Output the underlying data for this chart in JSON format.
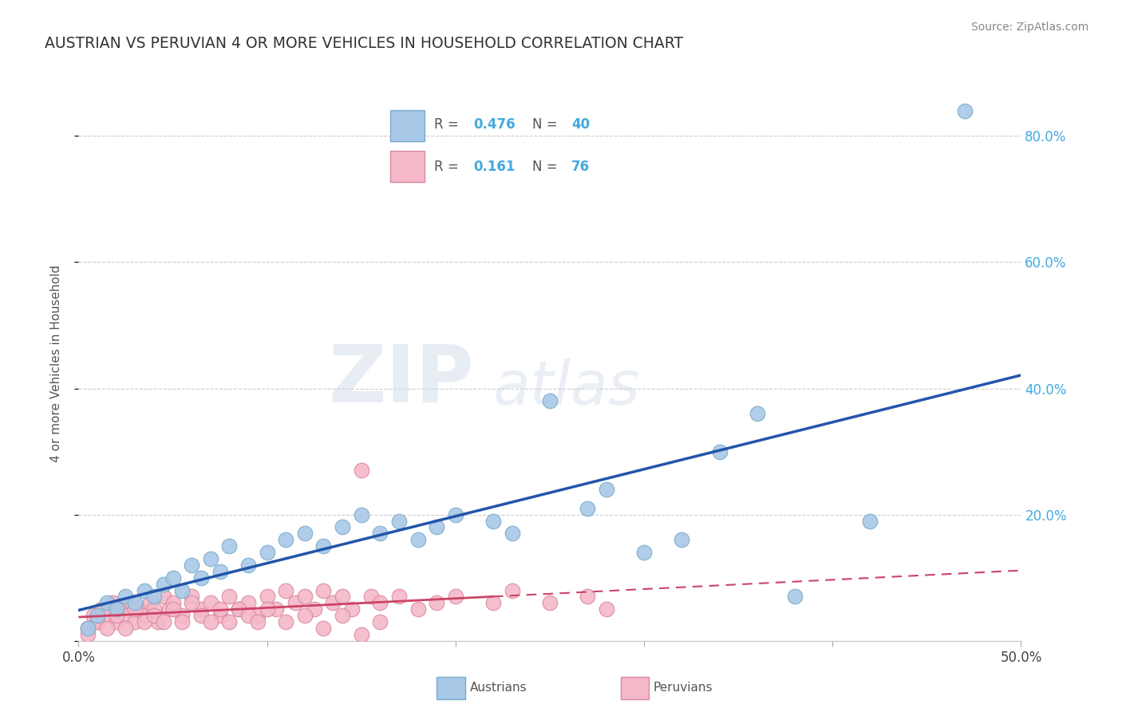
{
  "title": "AUSTRIAN VS PERUVIAN 4 OR MORE VEHICLES IN HOUSEHOLD CORRELATION CHART",
  "source": "Source: ZipAtlas.com",
  "ylabel": "4 or more Vehicles in Household",
  "xlim": [
    0.0,
    0.5
  ],
  "ylim": [
    0.0,
    0.88
  ],
  "xticks": [
    0.0,
    0.1,
    0.2,
    0.3,
    0.4,
    0.5
  ],
  "xticklabels": [
    "0.0%",
    "",
    "",
    "",
    "",
    "50.0%"
  ],
  "ytick_vals": [
    0.0,
    0.2,
    0.4,
    0.6,
    0.8
  ],
  "yticklabels": [
    "",
    "20.0%",
    "40.0%",
    "60.0%",
    "80.0%"
  ],
  "grid_color": "#cccccc",
  "background_color": "#ffffff",
  "austrian_color": "#a8c8e8",
  "austrian_edge_color": "#7aaac8",
  "peruvian_color": "#f4b8c8",
  "peruvian_edge_color": "#d888a0",
  "trend_austrian_color": "#2255aa",
  "trend_peruvian_color": "#cc4466",
  "legend_r_austrians": "0.476",
  "legend_n_austrians": "40",
  "legend_r_peruvians": "0.161",
  "legend_n_peruvians": "76",
  "austrian_points": [
    [
      0.005,
      0.02
    ],
    [
      0.01,
      0.04
    ],
    [
      0.015,
      0.06
    ],
    [
      0.02,
      0.05
    ],
    [
      0.025,
      0.07
    ],
    [
      0.03,
      0.06
    ],
    [
      0.035,
      0.08
    ],
    [
      0.04,
      0.07
    ],
    [
      0.045,
      0.09
    ],
    [
      0.05,
      0.1
    ],
    [
      0.055,
      0.08
    ],
    [
      0.06,
      0.12
    ],
    [
      0.065,
      0.1
    ],
    [
      0.07,
      0.13
    ],
    [
      0.075,
      0.11
    ],
    [
      0.08,
      0.15
    ],
    [
      0.09,
      0.12
    ],
    [
      0.1,
      0.14
    ],
    [
      0.11,
      0.16
    ],
    [
      0.12,
      0.17
    ],
    [
      0.13,
      0.15
    ],
    [
      0.14,
      0.18
    ],
    [
      0.15,
      0.2
    ],
    [
      0.16,
      0.17
    ],
    [
      0.17,
      0.19
    ],
    [
      0.18,
      0.16
    ],
    [
      0.19,
      0.18
    ],
    [
      0.2,
      0.2
    ],
    [
      0.22,
      0.19
    ],
    [
      0.23,
      0.17
    ],
    [
      0.25,
      0.38
    ],
    [
      0.27,
      0.21
    ],
    [
      0.28,
      0.24
    ],
    [
      0.3,
      0.14
    ],
    [
      0.32,
      0.16
    ],
    [
      0.34,
      0.3
    ],
    [
      0.36,
      0.36
    ],
    [
      0.38,
      0.07
    ],
    [
      0.42,
      0.19
    ],
    [
      0.47,
      0.84
    ]
  ],
  "peruvian_points": [
    [
      0.005,
      0.02
    ],
    [
      0.008,
      0.04
    ],
    [
      0.01,
      0.03
    ],
    [
      0.012,
      0.05
    ],
    [
      0.015,
      0.04
    ],
    [
      0.018,
      0.06
    ],
    [
      0.02,
      0.03
    ],
    [
      0.022,
      0.05
    ],
    [
      0.025,
      0.04
    ],
    [
      0.028,
      0.06
    ],
    [
      0.03,
      0.03
    ],
    [
      0.032,
      0.05
    ],
    [
      0.035,
      0.04
    ],
    [
      0.038,
      0.06
    ],
    [
      0.04,
      0.05
    ],
    [
      0.042,
      0.03
    ],
    [
      0.045,
      0.07
    ],
    [
      0.048,
      0.05
    ],
    [
      0.05,
      0.06
    ],
    [
      0.055,
      0.04
    ],
    [
      0.06,
      0.07
    ],
    [
      0.065,
      0.05
    ],
    [
      0.07,
      0.06
    ],
    [
      0.075,
      0.04
    ],
    [
      0.08,
      0.07
    ],
    [
      0.085,
      0.05
    ],
    [
      0.09,
      0.06
    ],
    [
      0.095,
      0.04
    ],
    [
      0.1,
      0.07
    ],
    [
      0.105,
      0.05
    ],
    [
      0.11,
      0.08
    ],
    [
      0.115,
      0.06
    ],
    [
      0.12,
      0.07
    ],
    [
      0.125,
      0.05
    ],
    [
      0.13,
      0.08
    ],
    [
      0.135,
      0.06
    ],
    [
      0.14,
      0.07
    ],
    [
      0.145,
      0.05
    ],
    [
      0.15,
      0.27
    ],
    [
      0.155,
      0.07
    ],
    [
      0.16,
      0.06
    ],
    [
      0.17,
      0.07
    ],
    [
      0.18,
      0.05
    ],
    [
      0.19,
      0.06
    ],
    [
      0.2,
      0.07
    ],
    [
      0.22,
      0.06
    ],
    [
      0.23,
      0.08
    ],
    [
      0.25,
      0.06
    ],
    [
      0.27,
      0.07
    ],
    [
      0.28,
      0.05
    ],
    [
      0.005,
      0.01
    ],
    [
      0.01,
      0.03
    ],
    [
      0.015,
      0.02
    ],
    [
      0.02,
      0.04
    ],
    [
      0.025,
      0.02
    ],
    [
      0.03,
      0.05
    ],
    [
      0.035,
      0.03
    ],
    [
      0.04,
      0.04
    ],
    [
      0.045,
      0.03
    ],
    [
      0.05,
      0.05
    ],
    [
      0.055,
      0.03
    ],
    [
      0.06,
      0.06
    ],
    [
      0.065,
      0.04
    ],
    [
      0.07,
      0.03
    ],
    [
      0.075,
      0.05
    ],
    [
      0.08,
      0.03
    ],
    [
      0.085,
      0.05
    ],
    [
      0.09,
      0.04
    ],
    [
      0.095,
      0.03
    ],
    [
      0.1,
      0.05
    ],
    [
      0.11,
      0.03
    ],
    [
      0.12,
      0.04
    ],
    [
      0.13,
      0.02
    ],
    [
      0.14,
      0.04
    ],
    [
      0.15,
      0.01
    ],
    [
      0.16,
      0.03
    ]
  ]
}
